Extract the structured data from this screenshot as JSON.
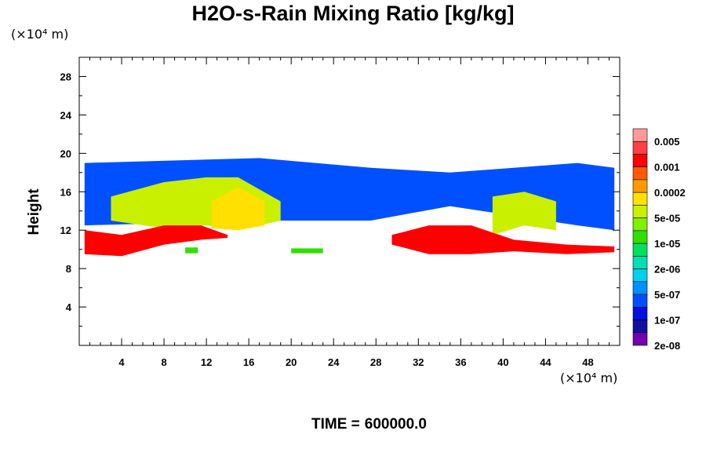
{
  "chart_data": {
    "type": "heatmap",
    "title": "H2O-s-Rain Mixing Ratio [kg/kg]",
    "xlabel": "",
    "ylabel": "Height",
    "x_unit": "(×10⁴ m)",
    "y_unit": "(×10⁴ m)",
    "xlim": [
      0,
      51
    ],
    "ylim": [
      0,
      30
    ],
    "x_ticks": [
      4,
      8,
      12,
      16,
      20,
      24,
      28,
      32,
      36,
      40,
      44,
      48
    ],
    "y_ticks": [
      4,
      8,
      12,
      16,
      20,
      24,
      28
    ],
    "colorbar": {
      "labels": [
        "0.005",
        "0.001",
        "0.0002",
        "5e-05",
        "1e-05",
        "2e-06",
        "5e-07",
        "1e-07",
        "2e-08"
      ],
      "colors": [
        "#ff9a9a",
        "#ff4040",
        "#ff0000",
        "#ff5a00",
        "#ff9900",
        "#ffe000",
        "#c8f000",
        "#80f000",
        "#30e000",
        "#00e060",
        "#00e0b0",
        "#00d0f0",
        "#0090ff",
        "#0050ff",
        "#0010e0",
        "#1010a0",
        "#7000b0"
      ]
    },
    "layers": [
      {
        "name": "upper-cloud",
        "level": "1e-07",
        "x": [
          0.5,
          17,
          27.5,
          35,
          47,
          50.5
        ],
        "y_bottom": [
          12.5,
          13,
          13,
          14.5,
          12.5,
          12
        ],
        "y_top": [
          19,
          19.5,
          18.5,
          18,
          19,
          18.5
        ]
      },
      {
        "name": "core-left",
        "level": "5e-05",
        "x": [
          3,
          8,
          12,
          15,
          19
        ],
        "y_bottom": [
          13,
          12.2,
          12.5,
          12,
          13
        ],
        "y_top": [
          15.5,
          17,
          17.5,
          17.5,
          15
        ]
      },
      {
        "name": "max-left",
        "level": "0.0002",
        "x": [
          12.5,
          15,
          17.5
        ],
        "y_bottom": [
          12.2,
          12,
          12.5
        ],
        "y_top": [
          15,
          16.5,
          15
        ]
      },
      {
        "name": "core-right",
        "level": "5e-05",
        "x": [
          39,
          42,
          45
        ],
        "y_bottom": [
          11.5,
          12.5,
          12
        ],
        "y_top": [
          15.5,
          16,
          15
        ]
      },
      {
        "name": "low-band-left",
        "level": "0.001",
        "x": [
          0.5,
          4,
          8,
          11.5,
          14
        ],
        "y_bottom": [
          9.5,
          9.3,
          10.5,
          11,
          11.2
        ],
        "y_top": [
          12,
          11.5,
          12.5,
          12.5,
          11.5
        ]
      },
      {
        "name": "low-band-right",
        "level": "0.001",
        "x": [
          29.5,
          33,
          37,
          41,
          46,
          50.5
        ],
        "y_bottom": [
          10.5,
          9.5,
          9.5,
          9.8,
          9.5,
          9.7
        ],
        "y_top": [
          11.5,
          12.5,
          12.5,
          11,
          10.5,
          10.3
        ]
      },
      {
        "name": "patch-20-23",
        "level": "1e-05",
        "x": [
          20,
          21.5,
          23
        ],
        "y_bottom": [
          9.6,
          9.6,
          9.6
        ],
        "y_top": [
          10.1,
          10.1,
          10.1
        ]
      },
      {
        "name": "patch-10",
        "level": "1e-05",
        "x": [
          10,
          10.6,
          11.2
        ],
        "y_bottom": [
          9.6,
          9.6,
          9.6
        ],
        "y_top": [
          10.2,
          10.2,
          10.2
        ]
      }
    ]
  },
  "footer": {
    "time_label": "TIME =",
    "time_value": "600000.0"
  }
}
